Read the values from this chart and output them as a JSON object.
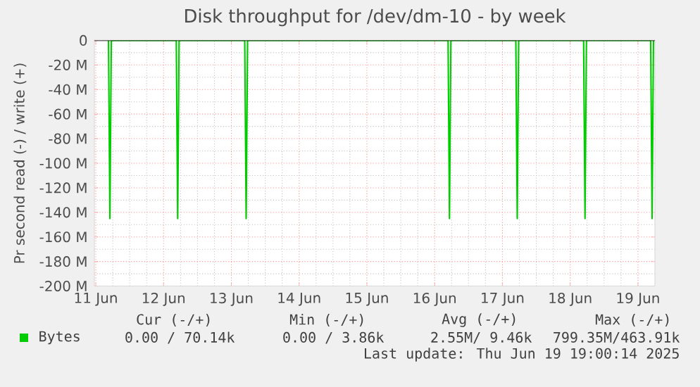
{
  "chart_data": {
    "type": "line",
    "title": "Disk throughput for /dev/dm-10 - by week",
    "ylabel": "Pr second read (-) / write (+)",
    "x": [
      "2025-06-11T04:30",
      "2025-06-11T05:00",
      "2025-06-11T05:30",
      "2025-06-12T04:30",
      "2025-06-12T05:00",
      "2025-06-12T05:30",
      "2025-06-13T04:45",
      "2025-06-13T05:15",
      "2025-06-13T05:45",
      "2025-06-16T04:45",
      "2025-06-16T05:15",
      "2025-06-16T05:45",
      "2025-06-17T04:45",
      "2025-06-17T05:15",
      "2025-06-17T05:45",
      "2025-06-18T04:45",
      "2025-06-18T05:15",
      "2025-06-18T05:45",
      "2025-06-19T04:30",
      "2025-06-19T05:00",
      "2025-06-19T05:30"
    ],
    "series": [
      {
        "name": "Bytes",
        "color": "#00cc00",
        "values": [
          0,
          -145,
          0,
          0,
          -145,
          0,
          0,
          -145,
          0,
          0,
          -145,
          0,
          0,
          -145,
          0,
          0,
          -145,
          0,
          0,
          -145,
          0
        ]
      }
    ],
    "xlim": [
      "2025-06-10T23:30",
      "2025-06-19T06:00"
    ],
    "xticks": [
      {
        "value": "2025-06-11",
        "label": "11 Jun"
      },
      {
        "value": "2025-06-12",
        "label": "12 Jun"
      },
      {
        "value": "2025-06-13",
        "label": "13 Jun"
      },
      {
        "value": "2025-06-14",
        "label": "14 Jun"
      },
      {
        "value": "2025-06-15",
        "label": "15 Jun"
      },
      {
        "value": "2025-06-16",
        "label": "16 Jun"
      },
      {
        "value": "2025-06-17",
        "label": "17 Jun"
      },
      {
        "value": "2025-06-18",
        "label": "18 Jun"
      },
      {
        "value": "2025-06-19",
        "label": "19 Jun"
      }
    ],
    "ylim": [
      -200,
      0
    ],
    "yticks": [
      {
        "value": -200,
        "label": "-200 M"
      },
      {
        "value": -180,
        "label": "-180 M"
      },
      {
        "value": -160,
        "label": "-160 M"
      },
      {
        "value": -140,
        "label": "-140 M"
      },
      {
        "value": -120,
        "label": "-120 M"
      },
      {
        "value": -100,
        "label": "-100 M"
      },
      {
        "value": -80,
        "label": "-80 M"
      },
      {
        "value": -60,
        "label": "-60 M"
      },
      {
        "value": -40,
        "label": "-40 M"
      },
      {
        "value": -20,
        "label": "-20 M"
      },
      {
        "value": 0,
        "label": "0"
      }
    ],
    "grid": true,
    "legend": "bottom",
    "marker": "none",
    "line_style": "solid",
    "annotations": [
      "Cur (-/+)",
      "Min (-/+)",
      "Avg (-/+)",
      "Max (-/+)",
      "0.00 / 70.14k",
      "0.00 / 3.86k",
      "2.55M/ 9.46k",
      "799.35M/463.91k",
      "Last update: Thu Jun 19 19:00:14 2025"
    ]
  }
}
